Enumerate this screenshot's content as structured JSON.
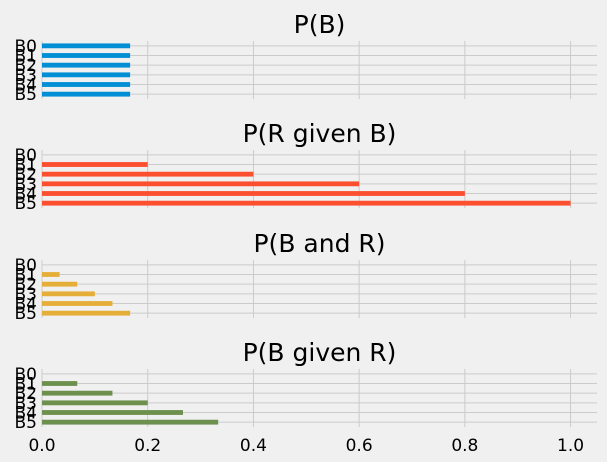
{
  "chart_data": [
    {
      "type": "bar",
      "orientation": "horizontal",
      "title": "P(B)",
      "categories": [
        "B0",
        "B1",
        "B2",
        "B3",
        "B4",
        "B5"
      ],
      "values": [
        0.1667,
        0.1667,
        0.1667,
        0.1667,
        0.1667,
        0.1667
      ],
      "color": "#008fd5",
      "xlim": [
        0.0,
        1.05
      ],
      "grid": true,
      "show_xticks": false
    },
    {
      "type": "bar",
      "orientation": "horizontal",
      "title": "P(R given B)",
      "categories": [
        "B0",
        "B1",
        "B2",
        "B3",
        "B4",
        "B5"
      ],
      "values": [
        0.0,
        0.2,
        0.4,
        0.6,
        0.8,
        1.0
      ],
      "color": "#fc4f30",
      "xlim": [
        0.0,
        1.05
      ],
      "grid": true,
      "show_xticks": false
    },
    {
      "type": "bar",
      "orientation": "horizontal",
      "title": "P(B and R)",
      "categories": [
        "B0",
        "B1",
        "B2",
        "B3",
        "B4",
        "B5"
      ],
      "values": [
        0.0,
        0.0333,
        0.0667,
        0.1,
        0.1333,
        0.1667
      ],
      "color": "#e5ae38",
      "xlim": [
        0.0,
        1.05
      ],
      "grid": true,
      "show_xticks": false
    },
    {
      "type": "bar",
      "orientation": "horizontal",
      "title": "P(B given R)",
      "categories": [
        "B0",
        "B1",
        "B2",
        "B3",
        "B4",
        "B5"
      ],
      "values": [
        0.0,
        0.0667,
        0.1333,
        0.2,
        0.2667,
        0.3333
      ],
      "color": "#6d904f",
      "xlim": [
        0.0,
        1.05
      ],
      "grid": true,
      "show_xticks": true,
      "xticks": [
        "0.0",
        "0.2",
        "0.4",
        "0.6",
        "0.8",
        "1.0"
      ]
    }
  ]
}
